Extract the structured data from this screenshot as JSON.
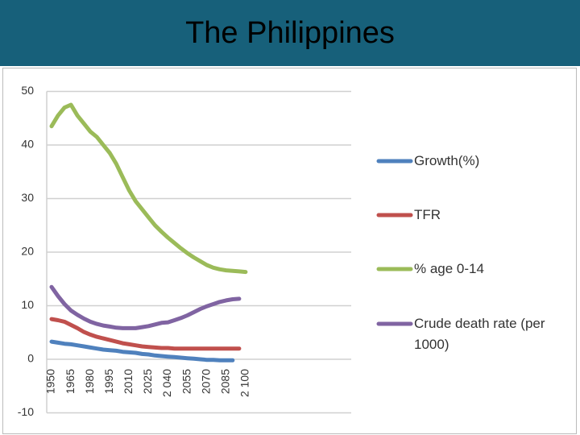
{
  "chart_data": {
    "type": "line",
    "title": "The Philippines",
    "categories": [
      "1950",
      null,
      null,
      "1965",
      null,
      null,
      "1980",
      null,
      null,
      "1995",
      null,
      null,
      "2010",
      null,
      null,
      "2025",
      null,
      null,
      "2 040",
      null,
      null,
      "2055",
      null,
      null,
      "2070",
      null,
      null,
      "2085",
      null,
      null,
      "2 100"
    ],
    "series": [
      {
        "name": "Growth(%)",
        "color": "#4f81bd",
        "values": [
          3.3,
          3.1,
          2.9,
          2.8,
          2.6,
          2.4,
          2.2,
          2.0,
          1.8,
          1.7,
          1.6,
          1.4,
          1.3,
          1.2,
          1.0,
          0.9,
          0.7,
          0.6,
          0.5,
          0.4,
          0.3,
          0.2,
          0.1,
          0.0,
          -0.1,
          -0.1,
          -0.2,
          -0.2,
          -0.2,
          null,
          null
        ]
      },
      {
        "name": "TFR",
        "color": "#c0504d",
        "values": [
          7.5,
          7.3,
          7.0,
          6.4,
          5.8,
          5.1,
          4.6,
          4.2,
          3.9,
          3.6,
          3.3,
          3.0,
          2.8,
          2.6,
          2.4,
          2.3,
          2.2,
          2.1,
          2.1,
          2.0,
          2.0,
          2.0,
          2.0,
          2.0,
          2.0,
          2.0,
          2.0,
          2.0,
          2.0,
          2.0,
          null
        ]
      },
      {
        "name": "% age 0-14",
        "color": "#9bbb59",
        "values": [
          43.5,
          45.5,
          47.0,
          47.5,
          45.5,
          44.0,
          42.5,
          41.5,
          40.0,
          38.5,
          36.5,
          34.0,
          31.5,
          29.5,
          28.0,
          26.5,
          25.0,
          23.8,
          22.7,
          21.7,
          20.7,
          19.8,
          19.0,
          18.3,
          17.6,
          17.1,
          16.8,
          16.6,
          16.5,
          16.4,
          16.3
        ]
      },
      {
        "name": "Crude death rate (per 1000)",
        "color": "#8064a2",
        "values": [
          13.5,
          11.8,
          10.3,
          9.1,
          8.3,
          7.6,
          7.0,
          6.6,
          6.3,
          6.1,
          5.9,
          5.8,
          5.8,
          5.8,
          6.0,
          6.2,
          6.5,
          6.8,
          6.9,
          7.3,
          7.7,
          8.2,
          8.8,
          9.4,
          9.9,
          10.3,
          10.7,
          11.0,
          11.2,
          11.3,
          null
        ]
      }
    ],
    "ylim": [
      -10,
      50
    ],
    "yticks": [
      -10,
      0,
      10,
      20,
      30,
      40,
      50
    ],
    "grid": true,
    "legend": "right"
  }
}
